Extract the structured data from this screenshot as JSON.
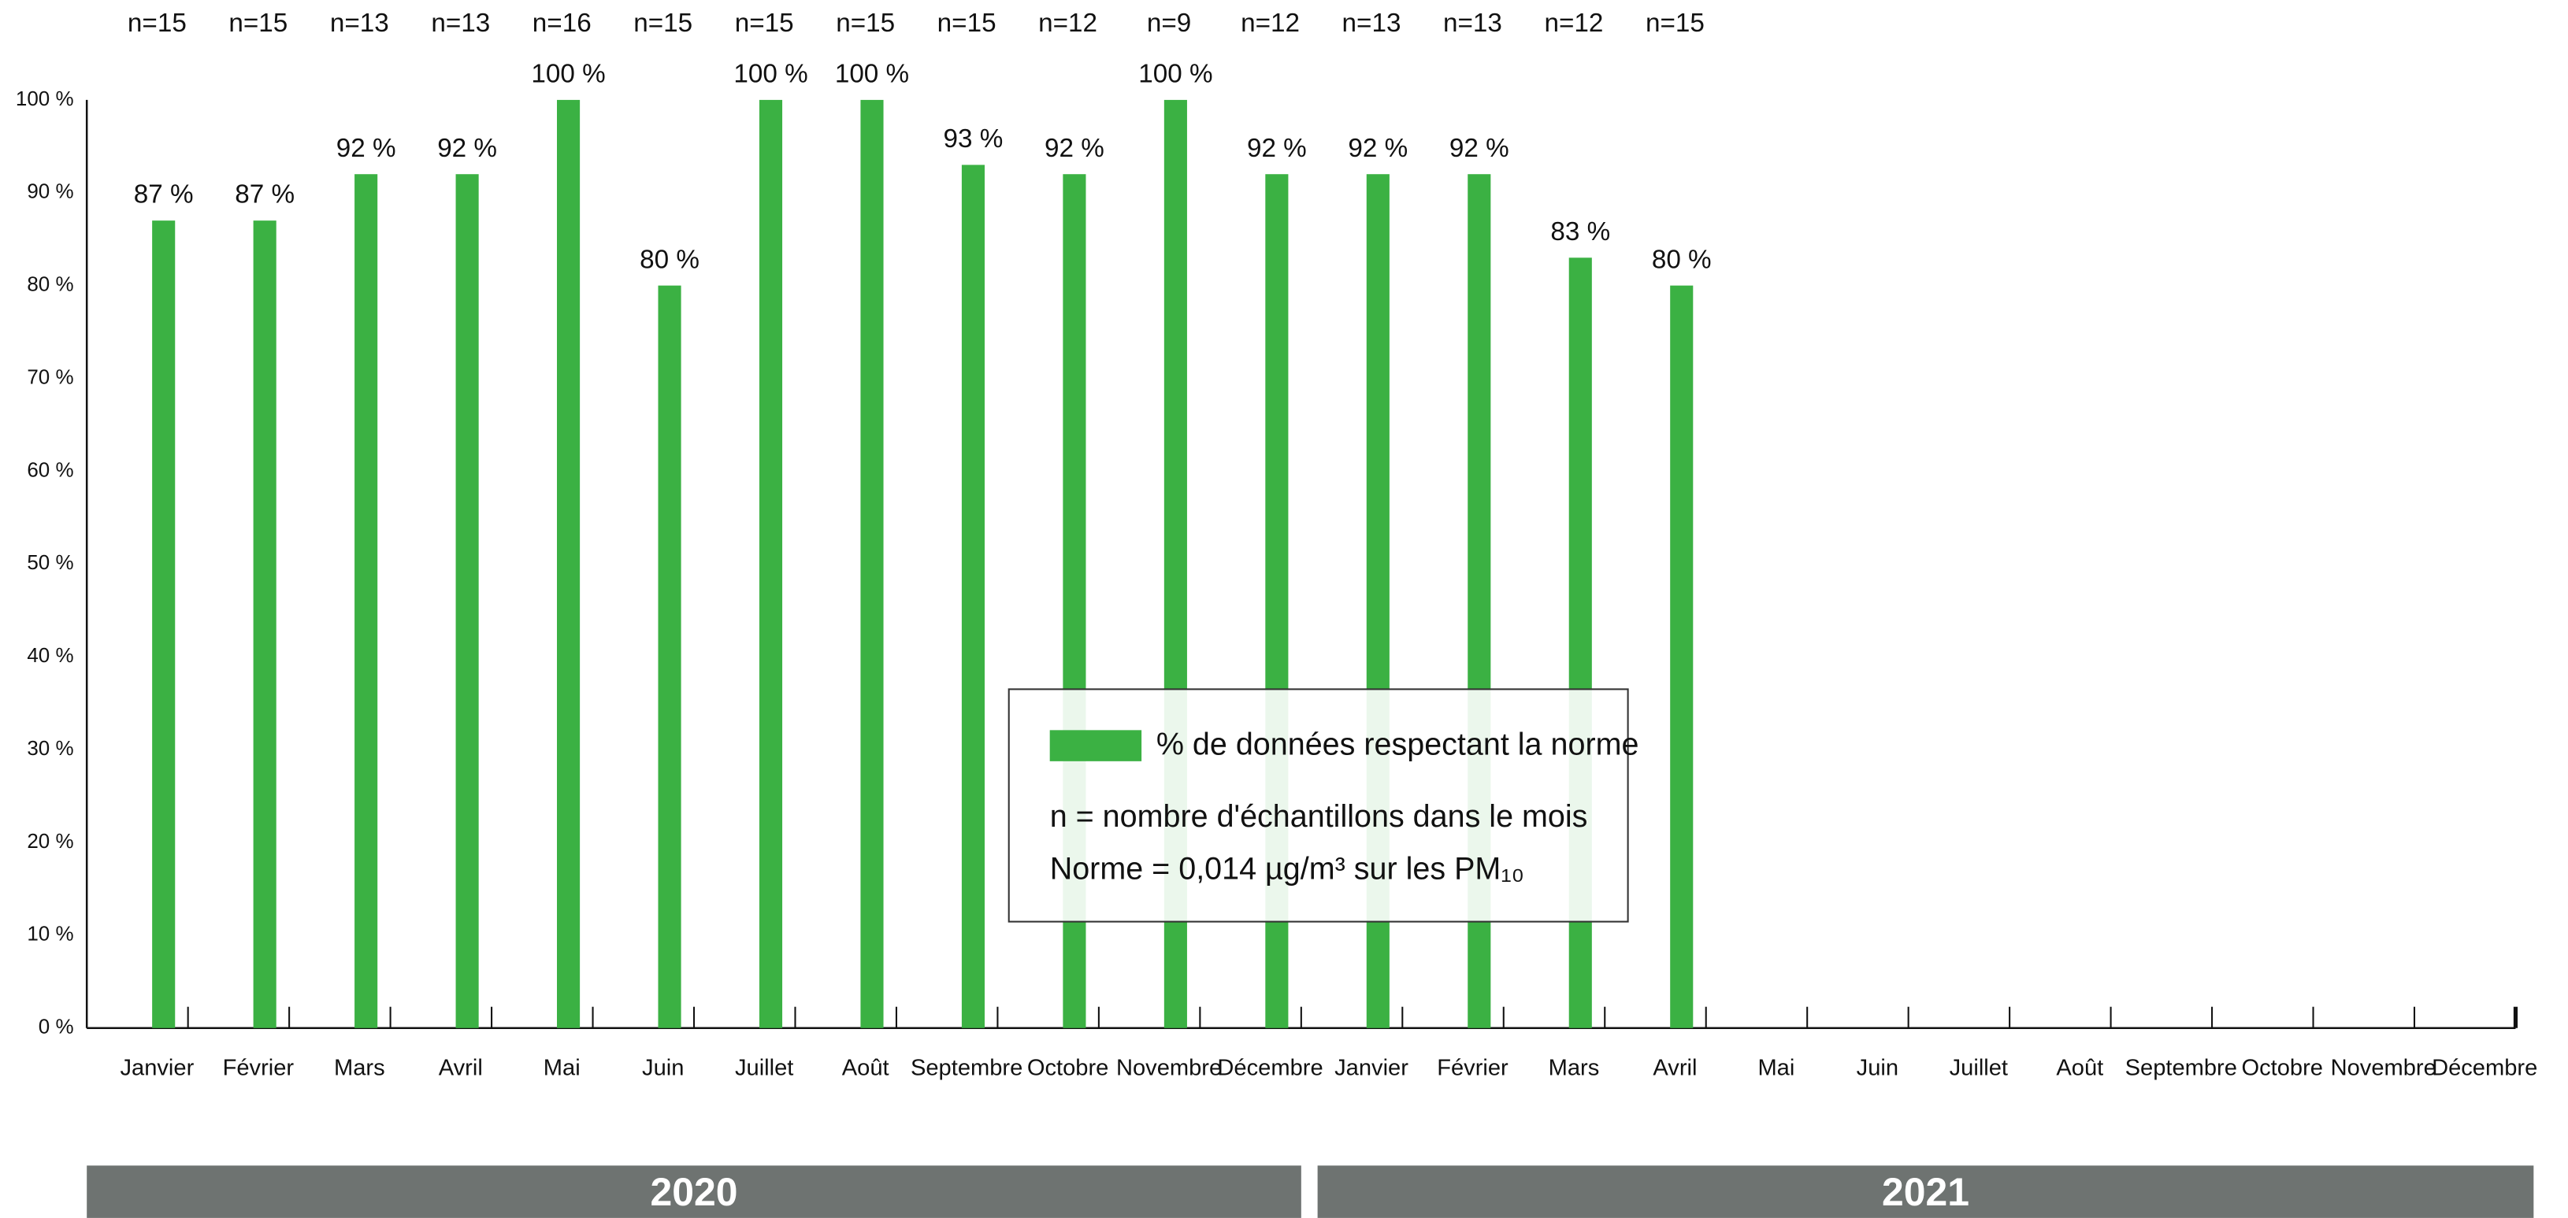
{
  "chart_data": {
    "type": "bar",
    "categories": [
      "Janvier",
      "Février",
      "Mars",
      "Avril",
      "Mai",
      "Juin",
      "Juillet",
      "Août",
      "Septembre",
      "Octobre",
      "Novembre",
      "Décembre",
      "Janvier",
      "Février",
      "Mars",
      "Avril",
      "Mai",
      "Juin",
      "Juillet",
      "Août",
      "Septembre",
      "Octobre",
      "Novembre",
      "Décembre"
    ],
    "series": [
      {
        "name": "% de données respectant la norme",
        "color": "#3bb143",
        "values": [
          87,
          87,
          92,
          92,
          100,
          80,
          100,
          100,
          93,
          92,
          100,
          92,
          92,
          92,
          83,
          80,
          null,
          null,
          null,
          null,
          null,
          null,
          null,
          null
        ],
        "value_labels": [
          "87 %",
          "87 %",
          "92 %",
          "92 %",
          "100 %",
          "80 %",
          "100 %",
          "100 %",
          "93 %",
          "92 %",
          "100 %",
          "92 %",
          "92 %",
          "92 %",
          "83 %",
          "80 %",
          null,
          null,
          null,
          null,
          null,
          null,
          null,
          null
        ]
      }
    ],
    "n_labels": [
      "n=15",
      "n=15",
      "n=13",
      "n=13",
      "n=16",
      "n=15",
      "n=15",
      "n=15",
      "n=15",
      "n=12",
      "n=9",
      "n=12",
      "n=13",
      "n=13",
      "n=12",
      "n=15",
      null,
      null,
      null,
      null,
      null,
      null,
      null,
      null
    ],
    "year_groups": [
      "2020",
      "2021"
    ],
    "legend_notes": [
      "n = nombre d'échantillons dans le mois",
      "Norme = 0,014 µg/m³ sur les PM₁₀"
    ],
    "ylim": [
      0,
      100
    ],
    "yticks": [
      {
        "value": 0,
        "label": "0 %"
      },
      {
        "value": 10,
        "label": "10 %"
      },
      {
        "value": 20,
        "label": "20 %"
      },
      {
        "value": 30,
        "label": "30 %"
      },
      {
        "value": 40,
        "label": "40 %"
      },
      {
        "value": 50,
        "label": "50 %"
      },
      {
        "value": 60,
        "label": "60 %"
      },
      {
        "value": 70,
        "label": "70 %"
      },
      {
        "value": 80,
        "label": "80 %"
      },
      {
        "value": 90,
        "label": "90 %"
      },
      {
        "value": 100,
        "label": "100 %"
      }
    ],
    "grid": false
  }
}
